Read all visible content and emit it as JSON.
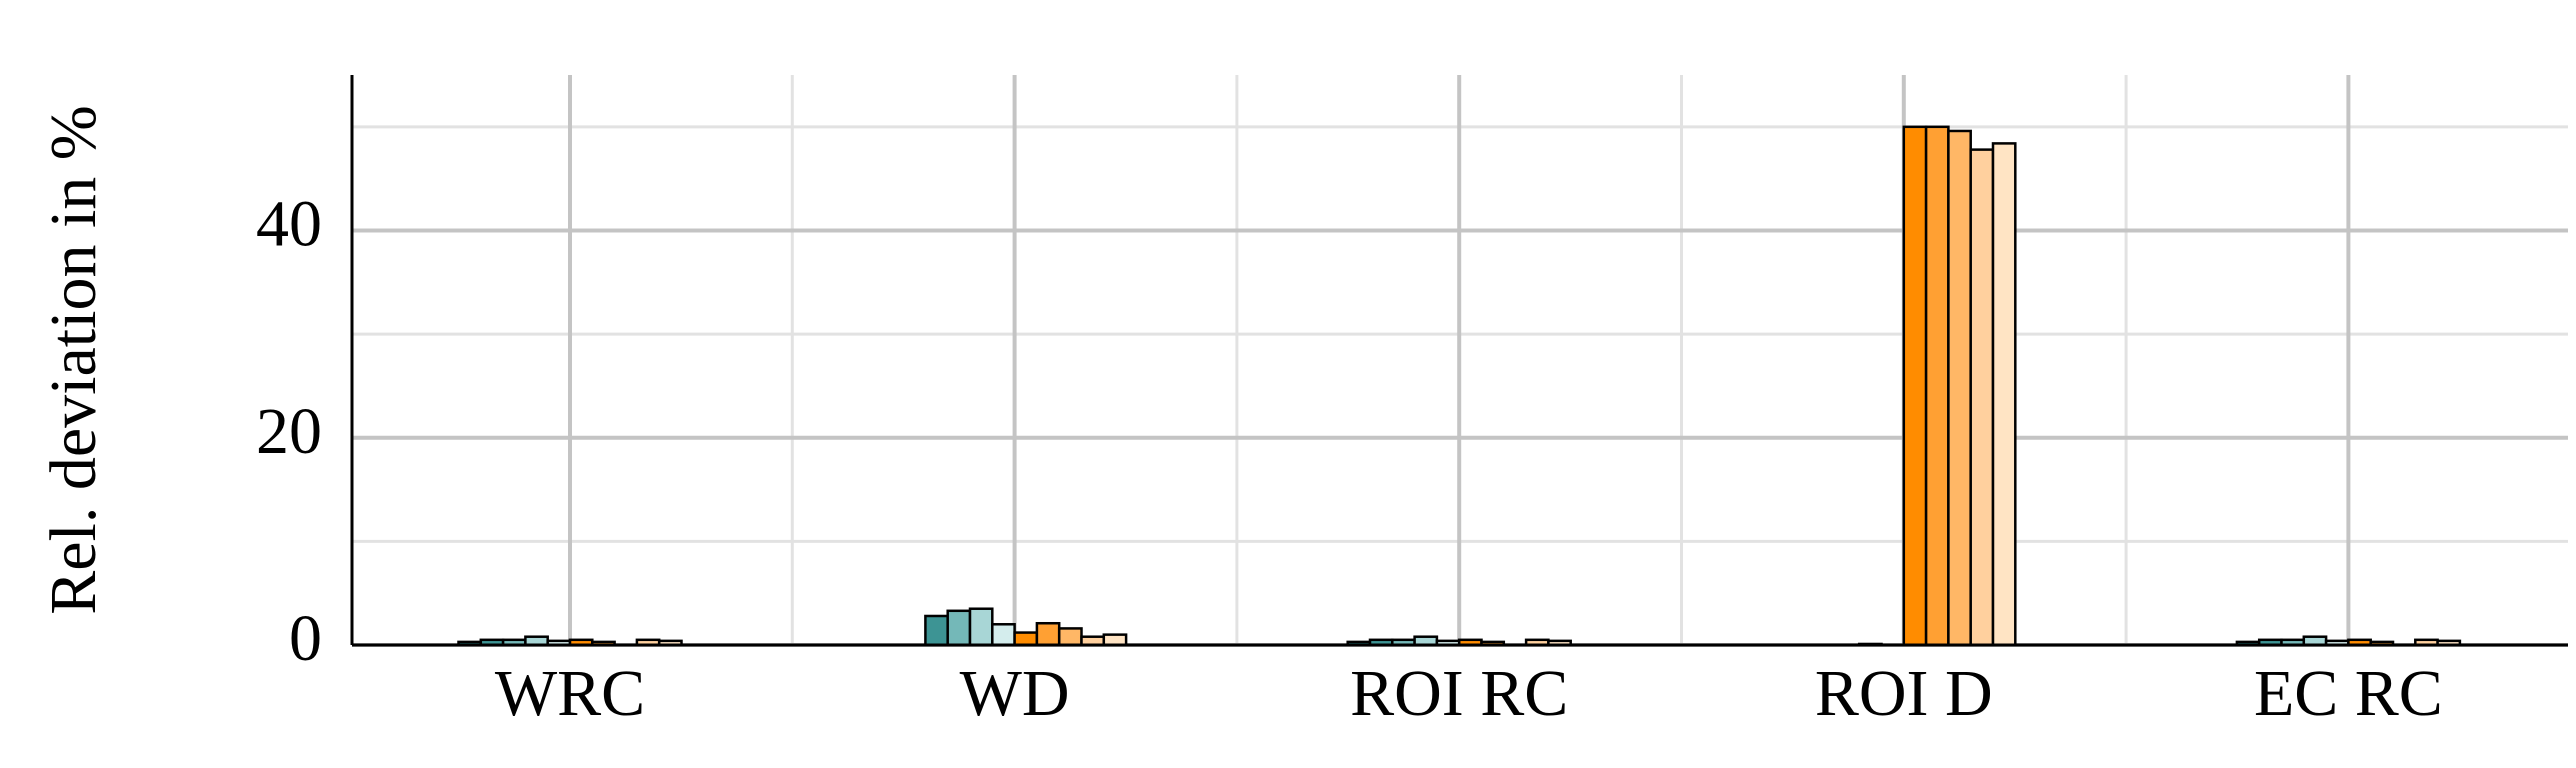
{
  "chart_data": {
    "type": "bar",
    "y_label": "Rel. deviation in %",
    "categories": [
      "WRC",
      "WD",
      "ROI RC",
      "ROI D",
      "EC RC"
    ],
    "series": [
      {
        "color": "#217a7a",
        "values": [
          0.3,
          0,
          0.3,
          0,
          0.3
        ]
      },
      {
        "color": "#3d9494",
        "values": [
          0.5,
          2.8,
          0.5,
          0,
          0.5
        ]
      },
      {
        "color": "#74b8b8",
        "values": [
          0.5,
          3.3,
          0.5,
          0,
          0.5
        ]
      },
      {
        "color": "#a8d6d6",
        "values": [
          0.8,
          3.5,
          0.8,
          0.1,
          0.8
        ]
      },
      {
        "color": "#d4eded",
        "values": [
          0.4,
          2.0,
          0.4,
          0,
          0.4
        ]
      },
      {
        "color": "#ff8c00",
        "values": [
          0.5,
          1.2,
          0.5,
          50,
          0.5
        ]
      },
      {
        "color": "#ffa033",
        "values": [
          0.3,
          2.1,
          0.3,
          50,
          0.3
        ]
      },
      {
        "color": "#ffb766",
        "values": [
          0,
          1.6,
          0,
          49.6,
          0
        ]
      },
      {
        "color": "#ffd09e",
        "values": [
          0.5,
          0.8,
          0.5,
          47.8,
          0.5
        ]
      },
      {
        "color": "#ffe4c4",
        "values": [
          0.4,
          1.0,
          0.4,
          48.4,
          0.4
        ]
      }
    ],
    "ylim": [
      0,
      55
    ],
    "yticks": [
      0,
      20,
      40
    ],
    "minor_yticks": [
      10,
      30,
      50
    ],
    "grid": true
  }
}
